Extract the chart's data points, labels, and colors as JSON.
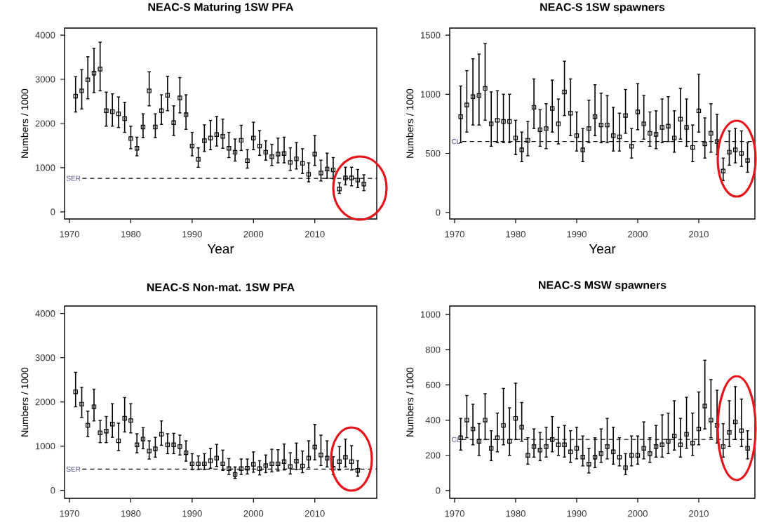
{
  "chart_data": [
    {
      "type": "scatter",
      "title": "NEAC-S Maturing 1SW  PFA",
      "xlabel": "Year",
      "ylabel": "Numbers / 1000",
      "color": "#000000",
      "marker": "square",
      "x": [
        1971,
        1972,
        1973,
        1974,
        1975,
        1976,
        1977,
        1978,
        1979,
        1980,
        1981,
        1982,
        1983,
        1984,
        1985,
        1986,
        1987,
        1988,
        1989,
        1990,
        1991,
        1992,
        1993,
        1994,
        1995,
        1996,
        1997,
        1998,
        1999,
        2000,
        2001,
        2002,
        2003,
        2004,
        2005,
        2006,
        2007,
        2008,
        2009,
        2010,
        2011,
        2012,
        2013,
        2014,
        2015,
        2016,
        2017,
        2018
      ],
      "values": [
        2620,
        2740,
        2990,
        3140,
        3230,
        2290,
        2270,
        2220,
        2110,
        1660,
        1440,
        1920,
        2740,
        1920,
        2290,
        2640,
        2020,
        2580,
        2200,
        1490,
        1190,
        1610,
        1670,
        1750,
        1710,
        1440,
        1350,
        1620,
        1160,
        1670,
        1490,
        1350,
        1250,
        1310,
        1320,
        1120,
        1200,
        1100,
        850,
        1310,
        880,
        970,
        950,
        520,
        770,
        770,
        720,
        630
      ],
      "errors": [
        [
          2260,
          3060
        ],
        [
          2330,
          3220
        ],
        [
          2560,
          3510
        ],
        [
          2700,
          3700
        ],
        [
          2740,
          3840
        ],
        [
          1940,
          2710
        ],
        [
          1940,
          2670
        ],
        [
          1910,
          2600
        ],
        [
          1800,
          2480
        ],
        [
          1430,
          1940
        ],
        [
          1270,
          1690
        ],
        [
          1680,
          2220
        ],
        [
          2400,
          3170
        ],
        [
          1680,
          2220
        ],
        [
          1980,
          2650
        ],
        [
          2290,
          3070
        ],
        [
          1730,
          2400
        ],
        [
          2240,
          3040
        ],
        [
          1870,
          2650
        ],
        [
          1270,
          1800
        ],
        [
          1010,
          1450
        ],
        [
          1370,
          1970
        ],
        [
          1410,
          2070
        ],
        [
          1490,
          2160
        ],
        [
          1440,
          2100
        ],
        [
          1230,
          1800
        ],
        [
          1150,
          1650
        ],
        [
          1390,
          1960
        ],
        [
          990,
          1410
        ],
        [
          1410,
          2030
        ],
        [
          1280,
          1840
        ],
        [
          1170,
          1610
        ],
        [
          1050,
          1530
        ],
        [
          1110,
          1670
        ],
        [
          1110,
          1690
        ],
        [
          940,
          1450
        ],
        [
          970,
          1570
        ],
        [
          870,
          1430
        ],
        [
          680,
          1110
        ],
        [
          1050,
          1730
        ],
        [
          700,
          1170
        ],
        [
          760,
          1330
        ],
        [
          750,
          1230
        ],
        [
          420,
          660
        ],
        [
          610,
          1010
        ],
        [
          590,
          1010
        ],
        [
          550,
          960
        ],
        [
          480,
          840
        ]
      ],
      "xlim": [
        1969.2,
        2020.1
      ],
      "ylim": [
        -160,
        4160
      ],
      "xticks": [
        1970,
        1980,
        1990,
        2000,
        2010
      ],
      "yticks": [
        0,
        1000,
        2000,
        3000,
        4000
      ],
      "ref_lines": [
        {
          "axis": "y",
          "value": 760,
          "label": "SER"
        }
      ]
    },
    {
      "type": "scatter",
      "title": "NEAC-S 1SW spawners",
      "xlabel": "Year",
      "ylabel": "Numbers / 1000",
      "color": "#000000",
      "marker": "square",
      "x": [
        1971,
        1972,
        1973,
        1974,
        1975,
        1976,
        1977,
        1978,
        1979,
        1980,
        1981,
        1982,
        1983,
        1984,
        1985,
        1986,
        1987,
        1988,
        1989,
        1990,
        1991,
        1992,
        1993,
        1994,
        1995,
        1996,
        1997,
        1998,
        1999,
        2000,
        2001,
        2002,
        2003,
        2004,
        2005,
        2006,
        2007,
        2008,
        2009,
        2010,
        2011,
        2012,
        2013,
        2014,
        2015,
        2016,
        2017,
        2018
      ],
      "values": [
        810,
        910,
        980,
        990,
        1050,
        750,
        780,
        770,
        770,
        630,
        530,
        610,
        890,
        700,
        710,
        880,
        750,
        1020,
        840,
        650,
        530,
        710,
        810,
        740,
        740,
        650,
        640,
        820,
        560,
        850,
        750,
        670,
        660,
        720,
        730,
        630,
        790,
        720,
        550,
        860,
        580,
        670,
        600,
        350,
        510,
        530,
        500,
        440
      ],
      "errors": [
        [
          590,
          1070
        ],
        [
          680,
          1200
        ],
        [
          740,
          1300
        ],
        [
          740,
          1340
        ],
        [
          780,
          1430
        ],
        [
          560,
          1020
        ],
        [
          590,
          1030
        ],
        [
          590,
          1000
        ],
        [
          590,
          1000
        ],
        [
          490,
          780
        ],
        [
          430,
          680
        ],
        [
          480,
          770
        ],
        [
          710,
          1130
        ],
        [
          560,
          870
        ],
        [
          540,
          920
        ],
        [
          680,
          1120
        ],
        [
          580,
          960
        ],
        [
          820,
          1280
        ],
        [
          650,
          1130
        ],
        [
          520,
          850
        ],
        [
          430,
          710
        ],
        [
          590,
          950
        ],
        [
          650,
          1080
        ],
        [
          590,
          1010
        ],
        [
          590,
          990
        ],
        [
          520,
          890
        ],
        [
          520,
          840
        ],
        [
          670,
          1040
        ],
        [
          460,
          710
        ],
        [
          700,
          1090
        ],
        [
          620,
          990
        ],
        [
          560,
          850
        ],
        [
          540,
          860
        ],
        [
          590,
          960
        ],
        [
          600,
          980
        ],
        [
          510,
          860
        ],
        [
          620,
          1050
        ],
        [
          560,
          960
        ],
        [
          430,
          740
        ],
        [
          680,
          1170
        ],
        [
          460,
          800
        ],
        [
          510,
          920
        ],
        [
          490,
          830
        ],
        [
          270,
          460
        ],
        [
          400,
          690
        ],
        [
          420,
          710
        ],
        [
          390,
          690
        ],
        [
          340,
          590
        ]
      ],
      "xlim": [
        1969.2,
        2019.2
      ],
      "ylim": [
        -55,
        1560
      ],
      "xticks": [
        1970,
        1980,
        1990,
        2000,
        2010
      ],
      "yticks": [
        0,
        500,
        1000,
        1500
      ],
      "ref_lines": [
        {
          "axis": "y",
          "value": 600,
          "label": "CL"
        }
      ]
    },
    {
      "type": "scatter",
      "title": "NEAC-S Non-mat. 1SW  PFA",
      "ylabel": "Numbers / 1000",
      "color": "#000000",
      "marker": "square",
      "x": [
        1971,
        1972,
        1973,
        1974,
        1975,
        1976,
        1977,
        1978,
        1979,
        1980,
        1981,
        1982,
        1983,
        1984,
        1985,
        1986,
        1987,
        1988,
        1989,
        1990,
        1991,
        1992,
        1993,
        1994,
        1995,
        1996,
        1997,
        1998,
        1999,
        2000,
        2001,
        2002,
        2003,
        2004,
        2005,
        2006,
        2007,
        2008,
        2009,
        2010,
        2011,
        2012,
        2013,
        2014,
        2015,
        2016,
        2017
      ],
      "values": [
        2230,
        1950,
        1470,
        1890,
        1300,
        1340,
        1500,
        1120,
        1630,
        1580,
        1030,
        1160,
        890,
        940,
        1270,
        1030,
        1030,
        990,
        850,
        600,
        600,
        600,
        670,
        730,
        600,
        490,
        360,
        490,
        500,
        590,
        490,
        560,
        600,
        600,
        650,
        540,
        660,
        550,
        730,
        980,
        800,
        730,
        500,
        650,
        750,
        650,
        450
      ],
      "errors": [
        [
          1890,
          2670
        ],
        [
          1650,
          2330
        ],
        [
          1220,
          1790
        ],
        [
          1570,
          2290
        ],
        [
          1080,
          1580
        ],
        [
          1080,
          1670
        ],
        [
          1200,
          1960
        ],
        [
          900,
          1520
        ],
        [
          1320,
          2100
        ],
        [
          1300,
          1960
        ],
        [
          850,
          1280
        ],
        [
          940,
          1420
        ],
        [
          710,
          1120
        ],
        [
          750,
          1200
        ],
        [
          1020,
          1570
        ],
        [
          830,
          1280
        ],
        [
          830,
          1290
        ],
        [
          800,
          1250
        ],
        [
          660,
          1120
        ],
        [
          470,
          830
        ],
        [
          470,
          780
        ],
        [
          470,
          830
        ],
        [
          500,
          950
        ],
        [
          540,
          1040
        ],
        [
          450,
          910
        ],
        [
          360,
          720
        ],
        [
          270,
          530
        ],
        [
          360,
          710
        ],
        [
          370,
          710
        ],
        [
          410,
          870
        ],
        [
          350,
          670
        ],
        [
          400,
          800
        ],
        [
          420,
          930
        ],
        [
          440,
          920
        ],
        [
          460,
          1050
        ],
        [
          370,
          850
        ],
        [
          470,
          1070
        ],
        [
          400,
          890
        ],
        [
          510,
          1120
        ],
        [
          690,
          1490
        ],
        [
          560,
          1250
        ],
        [
          530,
          1120
        ],
        [
          360,
          760
        ],
        [
          460,
          990
        ],
        [
          530,
          1160
        ],
        [
          460,
          1010
        ],
        [
          320,
          670
        ]
      ],
      "xlim": [
        1969.2,
        2020.1
      ],
      "ylim": [
        -180,
        4170
      ],
      "xticks": [
        1970,
        1980,
        1990,
        2000,
        2010
      ],
      "yticks": [
        0,
        1000,
        2000,
        3000,
        4000
      ],
      "ref_lines": [
        {
          "axis": "y",
          "value": 480,
          "label": "SER"
        }
      ]
    },
    {
      "type": "scatter",
      "title": "NEAC-S MSW spawners",
      "ylabel": "Numbers / 1000",
      "color": "#000000",
      "marker": "square",
      "x": [
        1971,
        1972,
        1973,
        1974,
        1975,
        1976,
        1977,
        1978,
        1979,
        1980,
        1981,
        1982,
        1983,
        1984,
        1985,
        1986,
        1987,
        1988,
        1989,
        1990,
        1991,
        1992,
        1993,
        1994,
        1995,
        1996,
        1997,
        1998,
        1999,
        2000,
        2001,
        2002,
        2003,
        2004,
        2005,
        2006,
        2007,
        2008,
        2009,
        2010,
        2011,
        2012,
        2013,
        2014,
        2015,
        2016,
        2017,
        2018
      ],
      "values": [
        300,
        400,
        350,
        280,
        400,
        240,
        300,
        370,
        280,
        410,
        360,
        200,
        250,
        230,
        250,
        290,
        260,
        260,
        220,
        240,
        190,
        150,
        190,
        210,
        250,
        220,
        190,
        130,
        200,
        200,
        240,
        210,
        250,
        260,
        280,
        310,
        260,
        320,
        270,
        350,
        480,
        400,
        370,
        250,
        330,
        390,
        340,
        240
      ],
      "errors": [
        [
          230,
          410
        ],
        [
          300,
          540
        ],
        [
          260,
          490
        ],
        [
          200,
          380
        ],
        [
          290,
          550
        ],
        [
          170,
          340
        ],
        [
          220,
          440
        ],
        [
          260,
          580
        ],
        [
          200,
          470
        ],
        [
          290,
          610
        ],
        [
          280,
          500
        ],
        [
          150,
          300
        ],
        [
          190,
          350
        ],
        [
          170,
          330
        ],
        [
          190,
          360
        ],
        [
          220,
          420
        ],
        [
          200,
          360
        ],
        [
          190,
          370
        ],
        [
          160,
          340
        ],
        [
          180,
          360
        ],
        [
          140,
          310
        ],
        [
          100,
          240
        ],
        [
          130,
          300
        ],
        [
          160,
          350
        ],
        [
          180,
          410
        ],
        [
          150,
          360
        ],
        [
          140,
          300
        ],
        [
          90,
          210
        ],
        [
          140,
          310
        ],
        [
          150,
          310
        ],
        [
          180,
          390
        ],
        [
          160,
          300
        ],
        [
          190,
          370
        ],
        [
          190,
          430
        ],
        [
          210,
          440
        ],
        [
          230,
          510
        ],
        [
          190,
          410
        ],
        [
          240,
          530
        ],
        [
          200,
          440
        ],
        [
          260,
          560
        ],
        [
          350,
          740
        ],
        [
          300,
          630
        ],
        [
          270,
          570
        ],
        [
          190,
          380
        ],
        [
          250,
          510
        ],
        [
          290,
          590
        ],
        [
          250,
          520
        ],
        [
          180,
          340
        ]
      ],
      "xlim": [
        1969.2,
        2019.2
      ],
      "ylim": [
        -44,
        1048
      ],
      "xticks": [
        1970,
        1980,
        1990,
        2000,
        2010
      ],
      "yticks": [
        0,
        200,
        400,
        600,
        800,
        1000
      ],
      "ref_lines": [
        {
          "axis": "y",
          "value": 290,
          "label": "CL"
        }
      ]
    }
  ]
}
